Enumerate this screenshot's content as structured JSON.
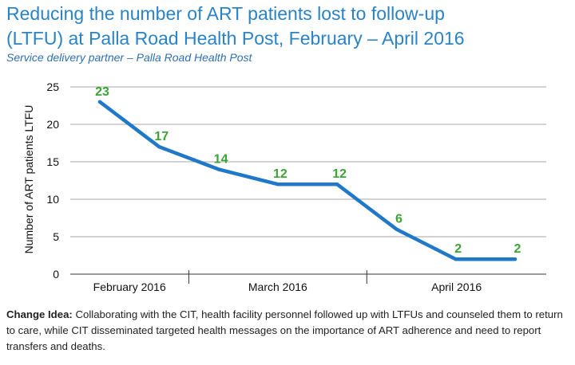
{
  "chart_data": {
    "type": "line",
    "title_lines": [
      "Reducing the number of ART patients lost to follow-up",
      "(LTFU) at Palla Road Health Post, February – April 2016"
    ],
    "subtitle": "Service delivery partner – Palla Road Health Post",
    "ylabel": "Number of ART patients LTFU",
    "ylim": [
      0,
      25
    ],
    "yticks": [
      0,
      5,
      10,
      15,
      20,
      25
    ],
    "grid": true,
    "x_period_labels": [
      "February 2016",
      "March 2016",
      "April 2016"
    ],
    "series": [
      {
        "values": [
          23,
          17,
          14,
          12,
          12,
          6,
          2,
          2
        ]
      }
    ],
    "data_labels": [
      "23",
      "17",
      "14",
      "12",
      "12",
      "6",
      "2",
      "2"
    ],
    "colors": {
      "line": "#1f78c8",
      "labels": "#3aa535",
      "grid": "#8a8a8a",
      "title": "#2a83c6"
    }
  },
  "note": {
    "label": "Change Idea:",
    "text": "Collaborating with the CIT, health facility personnel followed up with LTFUs and counseled them to return to care, while CIT disseminated targeted health messages on the importance of ART adherence and need to report transfers and deaths."
  }
}
